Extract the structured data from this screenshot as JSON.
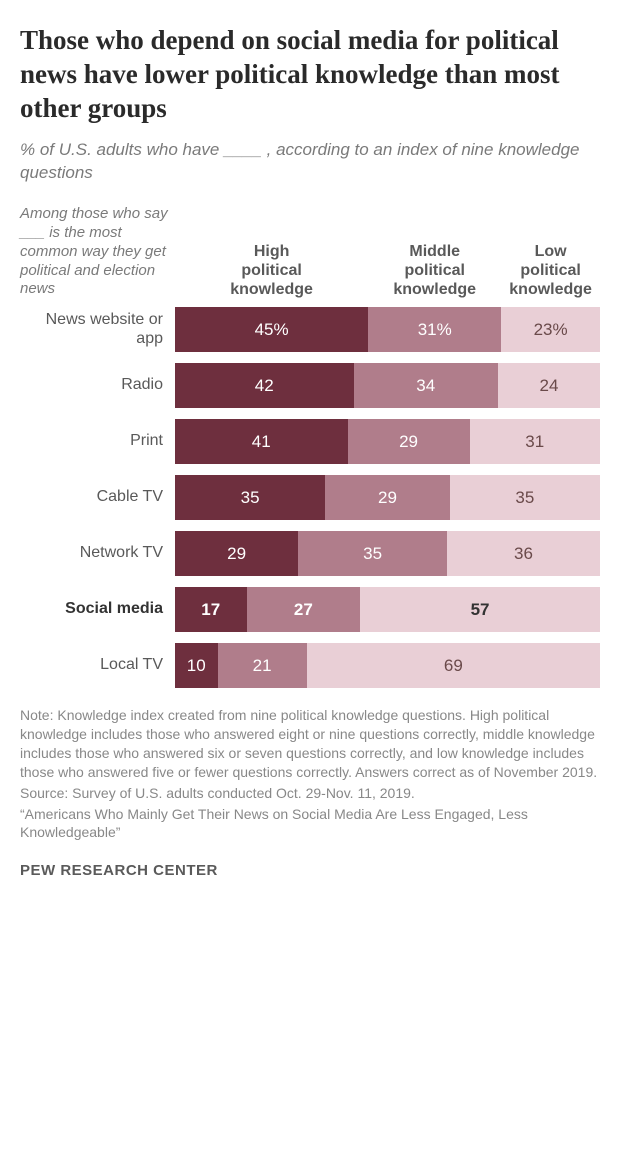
{
  "title": "Those who depend on social media for political news have lower political knowledge than most other groups",
  "subtitle": "% of U.S. adults who have ____ , according to an index of nine knowledge questions",
  "row_note": "Among those who say ___ is the most common way they get political and election news",
  "columns": [
    {
      "label": "High\npolitical\nknowledge"
    },
    {
      "label": "Middle\npolitical\nknowledge"
    },
    {
      "label": "Low\npolitical\nknowledge"
    }
  ],
  "colors": {
    "high": "#6e2f3e",
    "middle": "#b07d8b",
    "low": "#e9cfd6",
    "text_on_dark": "#ffffff",
    "text_on_light": "#6a4a4a",
    "background": "#ffffff"
  },
  "rows": [
    {
      "label": "News website or app",
      "high": 45,
      "middle": 31,
      "low": 23,
      "suffix": "%",
      "bold": false
    },
    {
      "label": "Radio",
      "high": 42,
      "middle": 34,
      "low": 24,
      "suffix": "",
      "bold": false
    },
    {
      "label": "Print",
      "high": 41,
      "middle": 29,
      "low": 31,
      "suffix": "",
      "bold": false
    },
    {
      "label": "Cable TV",
      "high": 35,
      "middle": 29,
      "low": 35,
      "suffix": "",
      "bold": false
    },
    {
      "label": "Network TV",
      "high": 29,
      "middle": 35,
      "low": 36,
      "suffix": "",
      "bold": false
    },
    {
      "label": "Social media",
      "high": 17,
      "middle": 27,
      "low": 57,
      "suffix": "",
      "bold": true
    },
    {
      "label": "Local TV",
      "high": 10,
      "middle": 21,
      "low": 69,
      "suffix": "",
      "bold": false
    }
  ],
  "note1": "Note: Knowledge index created from nine political knowledge questions. High political knowledge includes those who answered eight or nine questions correctly, middle knowledge includes those who answered six or seven questions correctly, and low knowledge includes those who answered five or fewer questions correctly. Answers correct as of November 2019.",
  "note2": "Source: Survey of U.S. adults conducted Oct. 29-Nov. 11, 2019.",
  "note3": "“Americans Who Mainly Get Their News on Social Media Are Less Engaged, Less Knowledgeable”",
  "footer": "PEW RESEARCH CENTER"
}
